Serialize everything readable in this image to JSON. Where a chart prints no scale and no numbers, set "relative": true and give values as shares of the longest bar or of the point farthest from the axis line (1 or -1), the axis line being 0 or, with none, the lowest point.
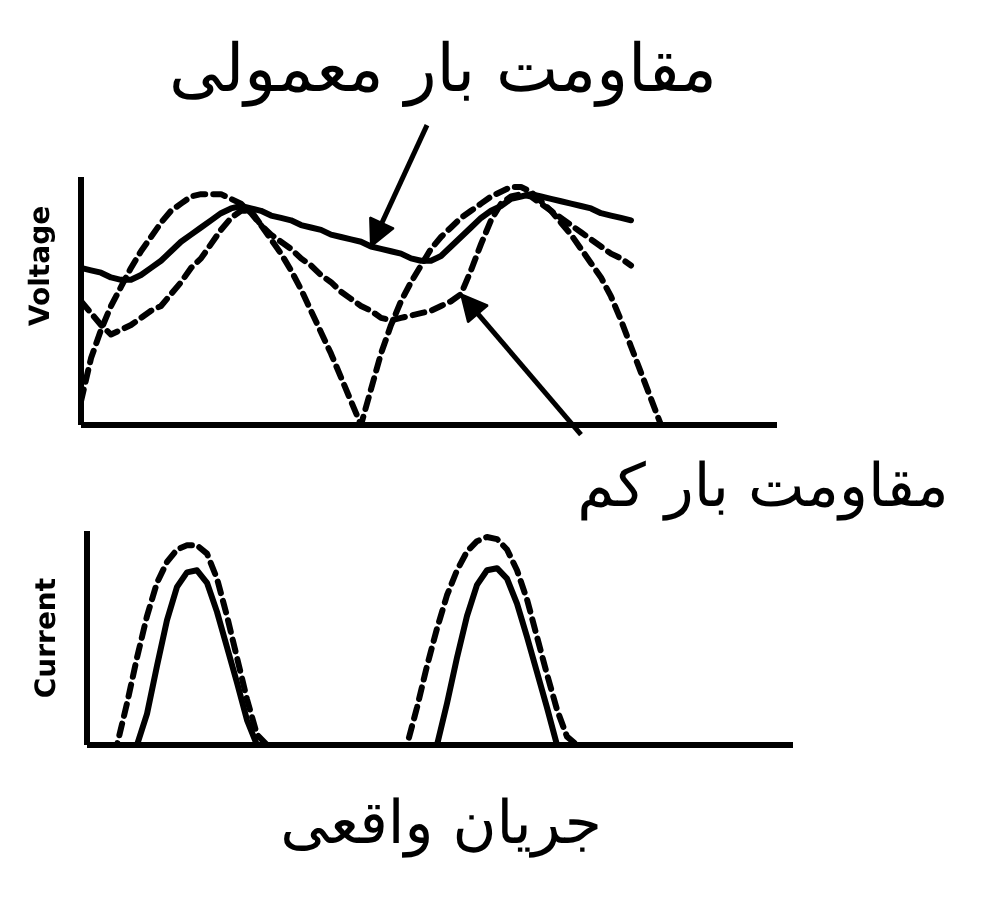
{
  "chart_data": [
    {
      "type": "line",
      "relative": true,
      "ylabel": "Voltage",
      "categories": [
        null,
        null,
        null,
        null,
        null,
        null,
        null,
        null,
        null,
        null,
        null,
        null,
        null,
        null,
        null,
        null,
        null,
        null,
        null,
        null,
        null,
        null,
        null,
        null,
        null,
        null,
        null,
        null,
        null,
        null,
        null,
        null,
        null,
        null,
        null,
        null,
        null,
        null,
        null,
        null,
        null,
        null,
        null,
        null,
        null,
        null,
        null,
        null,
        null,
        null,
        null,
        null,
        null,
        null,
        null,
        null,
        null,
        null,
        null,
        null,
        null,
        null,
        null,
        null,
        null,
        null,
        null,
        null,
        null,
        null
      ],
      "series": [
        {
          "color": "#000000",
          "line_style": "dashed",
          "values": [
            0.1,
            0.28,
            0.4,
            0.5,
            0.58,
            0.66,
            0.73,
            0.79,
            0.85,
            0.9,
            0.93,
            0.96,
            0.97,
            0.97,
            0.97,
            0.95,
            0.93,
            0.89,
            0.84,
            0.78,
            0.72,
            0.65,
            0.57,
            0.48,
            0.39,
            0.3,
            0.2,
            0.1,
            0,
            0.15,
            0.3,
            0.42,
            0.52,
            0.6,
            0.67,
            0.74,
            0.79,
            0.83,
            0.87,
            0.9,
            0.93,
            0.96,
            0.98,
            1,
            1,
            0.98,
            0.94,
            0.9,
            0.85,
            0.8,
            0.74,
            0.68,
            0.62,
            0.54,
            0.44,
            0.33,
            0.22,
            0.11,
            0,
            null,
            null,
            null,
            null,
            null,
            null,
            null,
            null,
            null,
            null,
            null
          ]
        },
        {
          "color": "#000000",
          "line_style": "solid",
          "values": [
            0.66,
            0.65,
            0.64,
            0.62,
            0.61,
            0.61,
            0.63,
            0.66,
            0.69,
            0.73,
            0.77,
            0.8,
            0.83,
            0.86,
            0.89,
            0.91,
            0.92,
            0.91,
            0.9,
            0.88,
            0.87,
            0.86,
            0.84,
            0.83,
            0.82,
            0.8,
            0.79,
            0.78,
            0.77,
            0.75,
            0.74,
            0.73,
            0.72,
            0.7,
            0.69,
            0.69,
            0.71,
            0.75,
            0.79,
            0.83,
            0.87,
            0.9,
            0.92,
            0.95,
            0.96,
            0.97,
            0.96,
            0.95,
            0.94,
            0.93,
            0.92,
            0.91,
            0.89,
            0.88,
            0.87,
            0.86,
            null,
            null,
            null,
            null,
            null,
            null,
            null,
            null,
            null,
            null,
            null,
            null,
            null,
            null
          ]
        },
        {
          "color": "#000000",
          "line_style": "dashed",
          "values": [
            0.52,
            0.47,
            0.42,
            0.38,
            0.4,
            0.42,
            0.45,
            0.48,
            0.5,
            0.55,
            0.6,
            0.66,
            0.7,
            0.76,
            0.82,
            0.87,
            0.9,
            0.9,
            0.84,
            0.8,
            0.77,
            0.74,
            0.7,
            0.67,
            0.63,
            0.6,
            0.56,
            0.53,
            0.5,
            0.48,
            0.45,
            0.44,
            0.45,
            0.46,
            0.47,
            0.48,
            0.5,
            0.52,
            0.55,
            0.65,
            0.76,
            0.86,
            0.93,
            0.96,
            0.97,
            0.96,
            0.93,
            0.9,
            0.87,
            0.84,
            0.81,
            0.78,
            0.75,
            0.72,
            0.7,
            0.67,
            null,
            null,
            null,
            null,
            null,
            null,
            null,
            null,
            null,
            null,
            null,
            null,
            null,
            null
          ]
        }
      ],
      "annotations": [
        "مقاومت بار معمولی",
        "مقاومت بار کم"
      ]
    },
    {
      "type": "line",
      "relative": true,
      "ylabel": "Current",
      "xlabel": "جریان واقعی",
      "categories": [
        null,
        null,
        null,
        null,
        null,
        null,
        null,
        null,
        null,
        null,
        null,
        null,
        null,
        null,
        null,
        null,
        null,
        null,
        null,
        null,
        null,
        null,
        null,
        null,
        null,
        null,
        null,
        null,
        null,
        null,
        null,
        null,
        null,
        null,
        null,
        null,
        null,
        null,
        null,
        null,
        null,
        null,
        null,
        null,
        null,
        null,
        null,
        null,
        null,
        null,
        null,
        null,
        null,
        null,
        null,
        null,
        null,
        null,
        null,
        null,
        null,
        null,
        null,
        null,
        null,
        null,
        null,
        null,
        null,
        null,
        null
      ],
      "series": [
        {
          "color": "#000000",
          "line_style": "dashed",
          "values": [
            0,
            0,
            0,
            0,
            0.2,
            0.42,
            0.62,
            0.78,
            0.88,
            0.94,
            0.96,
            0.96,
            0.92,
            0.8,
            0.62,
            0.42,
            0.22,
            0.05,
            0,
            0,
            0,
            0,
            0,
            0,
            0,
            0,
            0,
            0,
            0,
            0,
            0,
            0,
            0,
            0.18,
            0.38,
            0.56,
            0.72,
            0.84,
            0.93,
            0.98,
            1,
            0.99,
            0.94,
            0.84,
            0.7,
            0.52,
            0.34,
            0.17,
            0.04,
            0,
            null,
            null,
            null,
            null,
            null,
            null,
            null,
            null,
            null,
            null,
            null,
            null,
            null,
            null,
            null,
            null,
            null,
            null,
            null,
            null,
            null
          ]
        },
        {
          "color": "#000000",
          "line_style": "solid",
          "values": [
            0,
            0,
            0,
            0,
            0,
            0,
            0.15,
            0.38,
            0.6,
            0.76,
            0.83,
            0.84,
            0.78,
            0.64,
            0.47,
            0.3,
            0.12,
            0,
            0,
            0,
            0,
            0,
            0,
            0,
            0,
            0,
            0,
            0,
            0,
            0,
            0,
            0,
            0,
            0,
            0,
            0,
            0.2,
            0.42,
            0.62,
            0.77,
            0.84,
            0.85,
            0.8,
            0.68,
            0.52,
            0.35,
            0.18,
            0,
            null,
            null,
            null,
            null,
            null,
            null,
            null,
            null,
            null,
            null,
            null,
            null,
            null,
            null,
            null,
            null,
            null,
            null,
            null,
            null,
            null,
            null,
            null
          ]
        }
      ]
    }
  ]
}
